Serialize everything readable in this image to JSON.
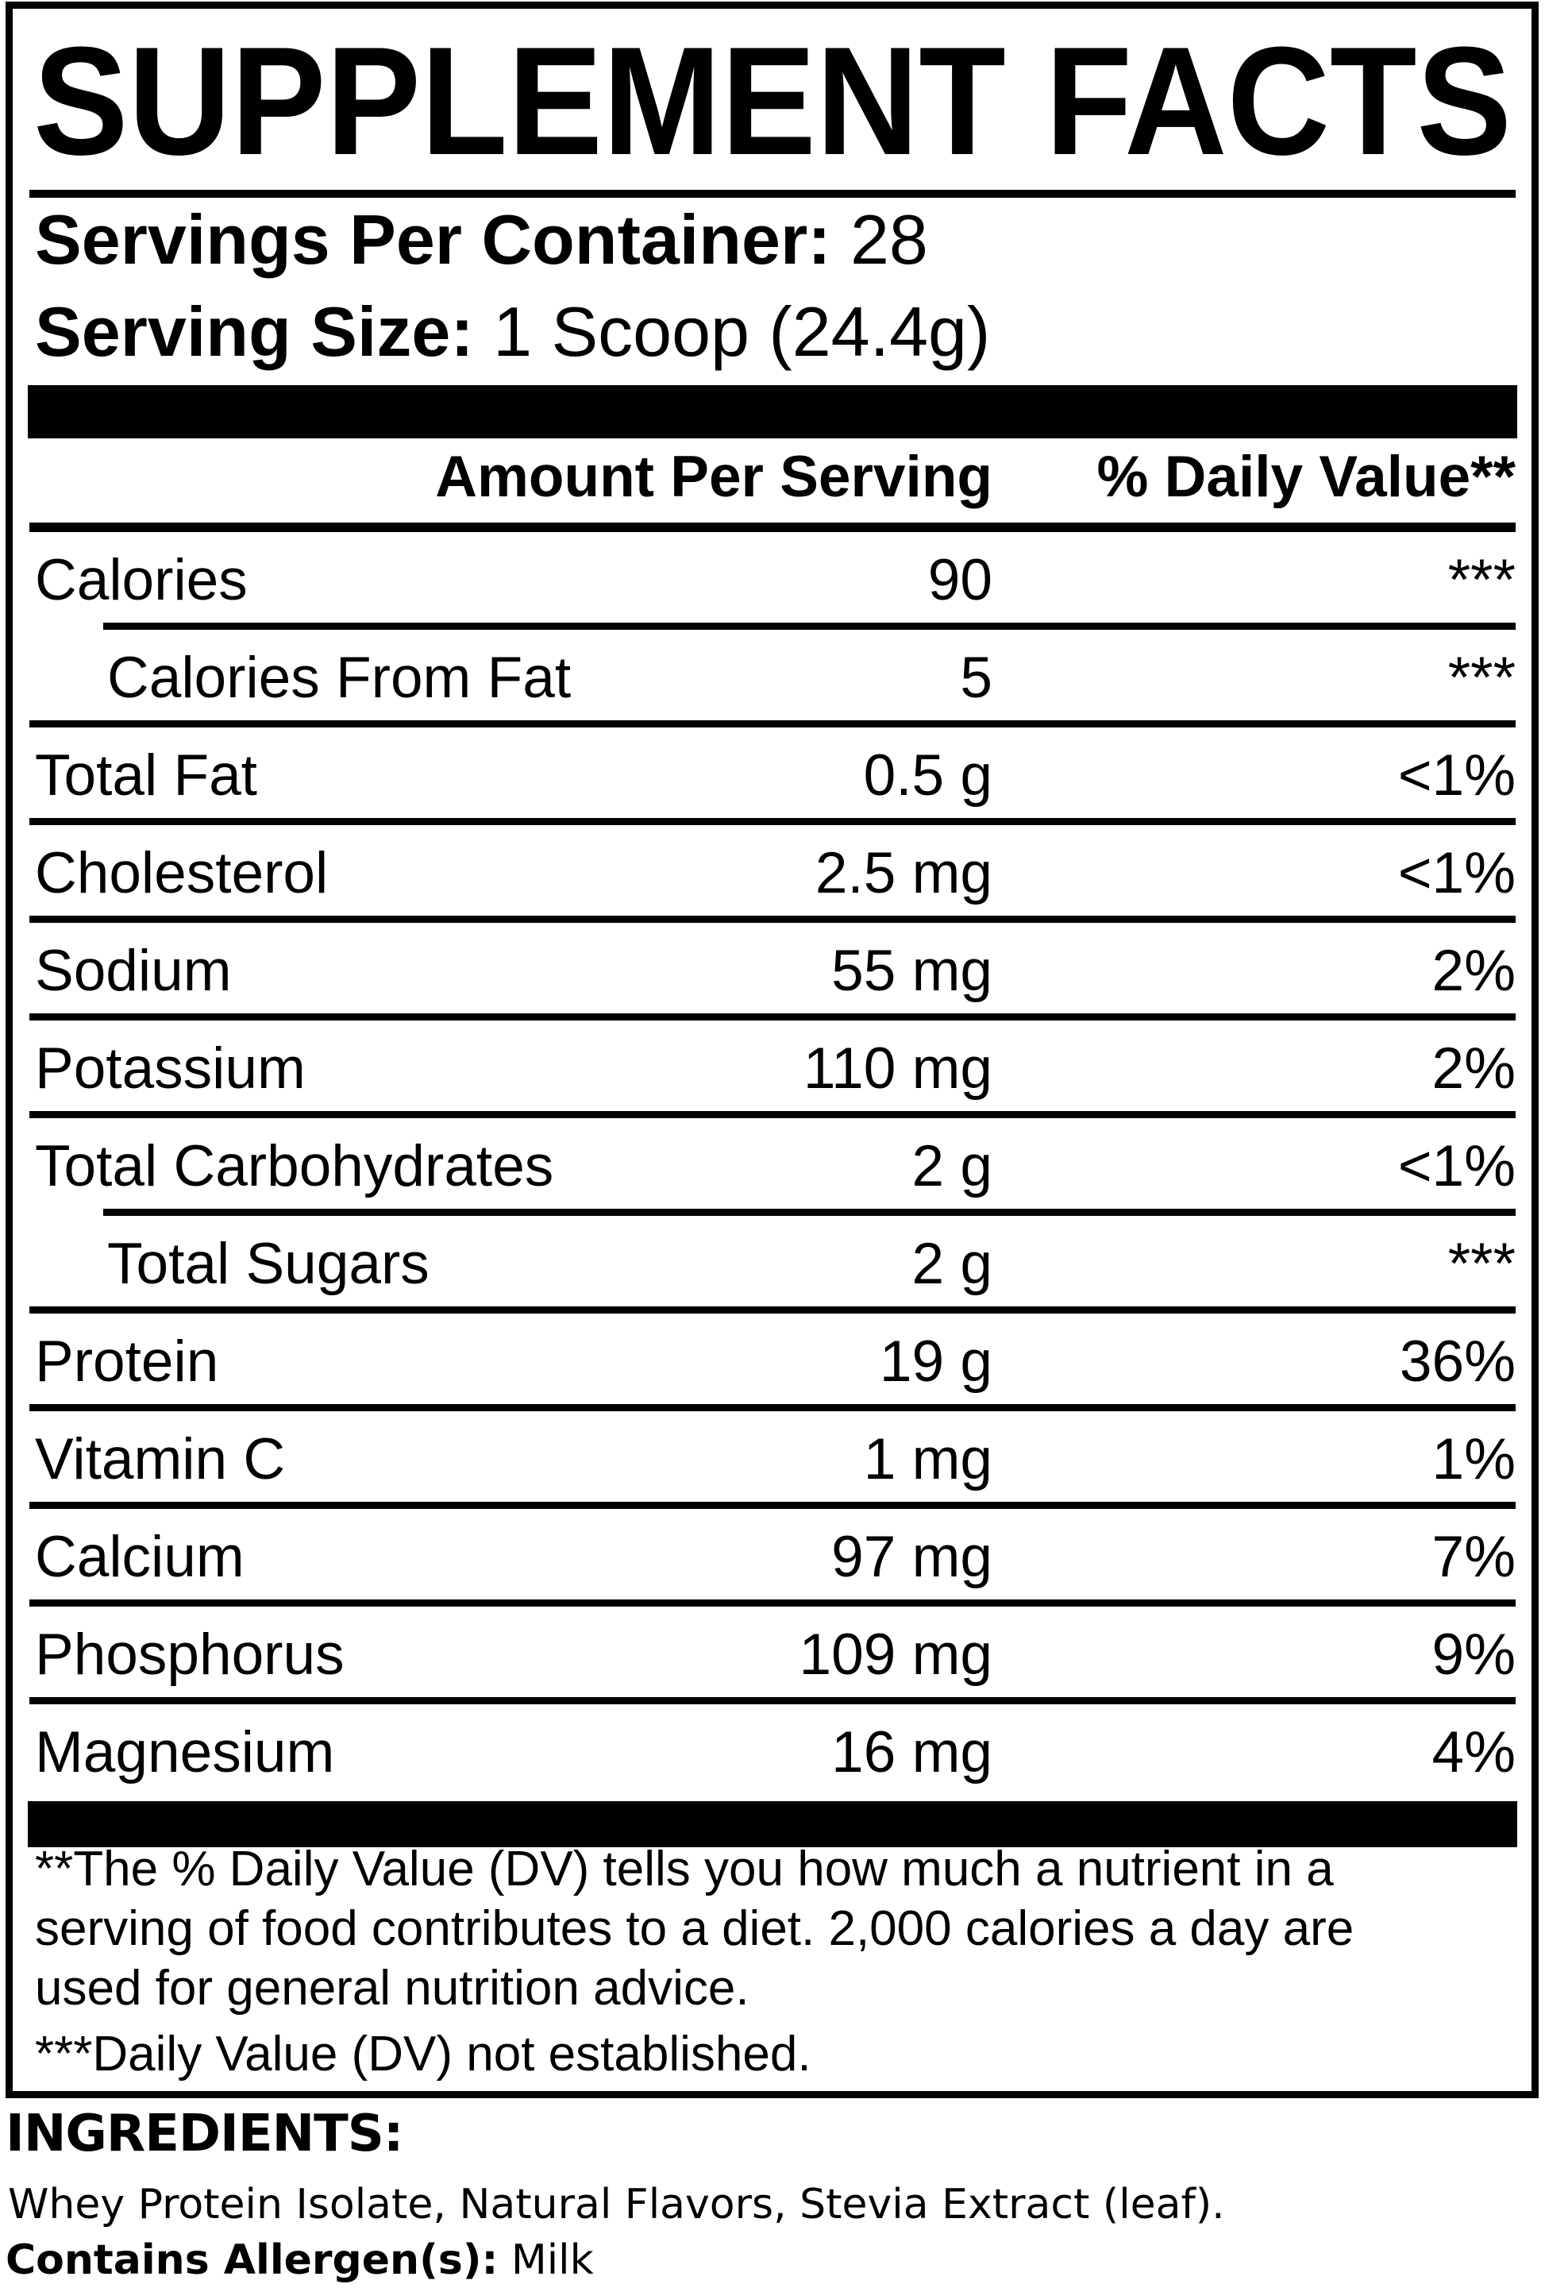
{
  "title": "SUPPLEMENT FACTS",
  "serving_info": {
    "servings_per_container_label": "Servings Per Container:",
    "servings_per_container_value": " 28",
    "serving_size_label": "Serving Size:",
    "serving_size_value": " 1 Scoop (24.4g)"
  },
  "table": {
    "header": {
      "amount": "Amount Per Serving",
      "daily_value": "% Daily Value**"
    },
    "rows": [
      {
        "name": "Calories",
        "amount": "90",
        "dv": "***",
        "indent": false
      },
      {
        "name": "Calories From Fat",
        "amount": "5",
        "dv": "***",
        "indent": true
      },
      {
        "name": "Total Fat",
        "amount": "0.5 g",
        "dv": "<1%",
        "indent": false
      },
      {
        "name": "Cholesterol",
        "amount": "2.5 mg",
        "dv": "<1%",
        "indent": false
      },
      {
        "name": "Sodium",
        "amount": "55 mg",
        "dv": "2%",
        "indent": false
      },
      {
        "name": "Potassium",
        "amount": "110 mg",
        "dv": "2%",
        "indent": false
      },
      {
        "name": "Total Carbohydrates",
        "amount": "2 g",
        "dv": "<1%",
        "indent": false
      },
      {
        "name": "Total Sugars",
        "amount": "2 g",
        "dv": "***",
        "indent": true
      },
      {
        "name": "Protein",
        "amount": "19 g",
        "dv": "36%",
        "indent": false
      },
      {
        "name": "Vitamin C",
        "amount": "1 mg",
        "dv": "1%",
        "indent": false
      },
      {
        "name": "Calcium",
        "amount": "97 mg",
        "dv": "7%",
        "indent": false
      },
      {
        "name": "Phosphorus",
        "amount": "109 mg",
        "dv": "9%",
        "indent": false
      },
      {
        "name": "Magnesium",
        "amount": "16 mg",
        "dv": "4%",
        "indent": false
      }
    ]
  },
  "footnote": {
    "lines": [
      "**The % Daily Value (DV) tells you how much a nutrient in a",
      "serving of food contributes to a diet. 2,000 calories a day are",
      "used for general nutrition advice."
    ],
    "not_established": "***Daily Value (DV) not established."
  },
  "ingredients": {
    "heading": "INGREDIENTS:",
    "list": "Whey Protein Isolate, Natural Flavors, Stevia Extract (leaf).",
    "allergen_label": "Contains Allergen(s):",
    "allergen_value": " Milk"
  },
  "colors": {
    "ink": "#000000",
    "paper": "#ffffff"
  }
}
